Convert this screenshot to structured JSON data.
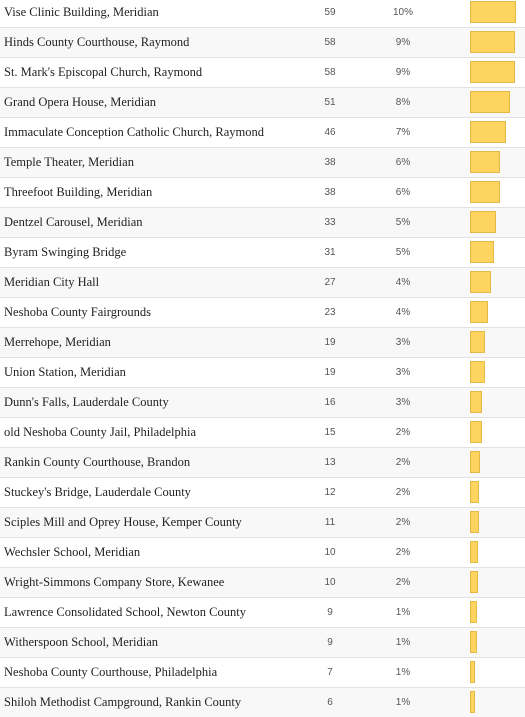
{
  "table": {
    "rows": [
      [
        "Vise Clinic Building, Meridian",
        59,
        "10%"
      ],
      [
        "Hinds County Courthouse, Raymond",
        58,
        "9%"
      ],
      [
        "St. Mark's Episcopal Church, Raymond",
        58,
        "9%"
      ],
      [
        "Grand Opera House, Meridian",
        51,
        "8%"
      ],
      [
        "Immaculate Conception Catholic Church, Raymond",
        46,
        "7%"
      ],
      [
        "Temple Theater, Meridian",
        38,
        "6%"
      ],
      [
        "Threefoot Building, Meridian",
        38,
        "6%"
      ],
      [
        "Dentzel Carousel, Meridian",
        33,
        "5%"
      ],
      [
        "Byram Swinging Bridge",
        31,
        "5%"
      ],
      [
        "Meridian City Hall",
        27,
        "4%"
      ],
      [
        "Neshoba County Fairgrounds",
        23,
        "4%"
      ],
      [
        "Merrehope, Meridian",
        19,
        "3%"
      ],
      [
        "Union Station, Meridian",
        19,
        "3%"
      ],
      [
        "Dunn's Falls, Lauderdale County",
        16,
        "3%"
      ],
      [
        "old Neshoba County Jail, Philadelphia",
        15,
        "2%"
      ],
      [
        "Rankin County Courthouse, Brandon",
        13,
        "2%"
      ],
      [
        "Stuckey's Bridge, Lauderdale County",
        12,
        "2%"
      ],
      [
        "Sciples Mill and Oprey House, Kemper County",
        11,
        "2%"
      ],
      [
        "Wechsler School, Meridian",
        10,
        "2%"
      ],
      [
        "Wright-Simmons Company Store, Kewanee",
        10,
        "2%"
      ],
      [
        "Lawrence Consolidated School, Newton County",
        9,
        "1%"
      ],
      [
        "Witherspoon School, Meridian",
        9,
        "1%"
      ],
      [
        "Neshoba County Courthouse, Philadelphia",
        7,
        "1%"
      ],
      [
        "Shiloh Methodist Campground, Rankin County",
        6,
        "1%"
      ]
    ]
  }
}
